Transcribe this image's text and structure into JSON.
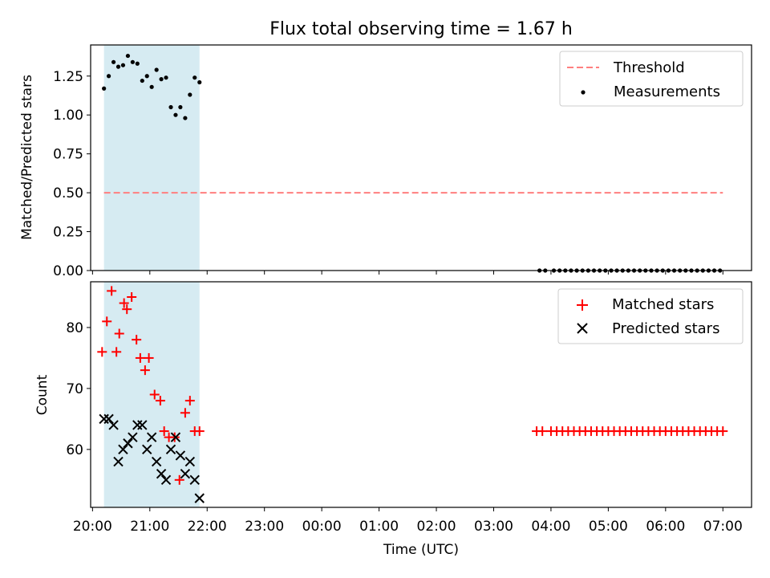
{
  "chart_data": [
    {
      "type": "scatter",
      "title": "Flux total observing time = 1.67 h",
      "xlabel": "",
      "ylabel": "Matched/Predicted stars",
      "x_unit": "hours (UTC, continuing past midnight: 24 = 00:00, 31 = 07:00)",
      "xlim": [
        19.967,
        31.5
      ],
      "ylim": [
        0.0,
        1.45
      ],
      "yticks": [
        "0.00",
        "0.25",
        "0.50",
        "0.75",
        "1.00",
        "1.25"
      ],
      "grid": false,
      "legend_position": "top-right",
      "shaded_span": [
        20.2,
        21.867
      ],
      "colors": {
        "span": "#add8e6",
        "threshold": "#ff7f7f",
        "measurements": "#000000"
      },
      "series": [
        {
          "name": "Threshold",
          "style": "dashed-line",
          "x": [
            20.2,
            31.0
          ],
          "y": [
            0.5,
            0.5
          ]
        },
        {
          "name": "Measurements",
          "style": "dot",
          "x": [
            20.2,
            20.283,
            20.367,
            20.45,
            20.533,
            20.617,
            20.7,
            20.783,
            20.867,
            20.95,
            21.033,
            21.117,
            21.2,
            21.283,
            21.367,
            21.45,
            21.533,
            21.617,
            21.7,
            21.783,
            21.867,
            27.8,
            27.9,
            28.05,
            28.15,
            28.25,
            28.35,
            28.45,
            28.55,
            28.65,
            28.75,
            28.85,
            28.95,
            29.05,
            29.15,
            29.25,
            29.35,
            29.45,
            29.55,
            29.65,
            29.75,
            29.85,
            29.95,
            30.05,
            30.15,
            30.25,
            30.35,
            30.45,
            30.55,
            30.65,
            30.75,
            30.85,
            30.95
          ],
          "y": [
            1.17,
            1.25,
            1.34,
            1.31,
            1.32,
            1.38,
            1.34,
            1.33,
            1.22,
            1.25,
            1.18,
            1.29,
            1.23,
            1.24,
            1.05,
            1.0,
            1.05,
            0.98,
            1.13,
            1.24,
            1.21,
            0,
            0,
            0,
            0,
            0,
            0,
            0,
            0,
            0,
            0,
            0,
            0,
            0,
            0,
            0,
            0,
            0,
            0,
            0,
            0,
            0,
            0,
            0,
            0,
            0,
            0,
            0,
            0,
            0,
            0,
            0,
            0
          ]
        }
      ]
    },
    {
      "type": "scatter",
      "title": "",
      "xlabel": "Time (UTC)",
      "ylabel": "Count",
      "xlim": [
        19.967,
        31.5
      ],
      "ylim": [
        50.5,
        87.5
      ],
      "yticks": [
        "60",
        "70",
        "80"
      ],
      "xticks": [
        "20:00",
        "21:00",
        "22:00",
        "23:00",
        "00:00",
        "01:00",
        "02:00",
        "03:00",
        "04:00",
        "05:00",
        "06:00",
        "07:00"
      ],
      "xtick_values": [
        20,
        21,
        22,
        23,
        24,
        25,
        26,
        27,
        28,
        29,
        30,
        31
      ],
      "grid": false,
      "legend_position": "top-right",
      "shaded_span": [
        20.2,
        21.867
      ],
      "colors": {
        "span": "#add8e6",
        "matched": "#ff0000",
        "predicted": "#000000"
      },
      "series": [
        {
          "name": "Matched stars",
          "marker": "+",
          "x": [
            20.167,
            20.25,
            20.333,
            20.417,
            20.467,
            20.55,
            20.6,
            20.683,
            20.767,
            20.833,
            20.917,
            20.983,
            21.083,
            21.183,
            21.25,
            21.333,
            21.433,
            21.517,
            21.617,
            21.7,
            21.783,
            21.867,
            27.75,
            27.85,
            28.0,
            28.1,
            28.2,
            28.3,
            28.4,
            28.5,
            28.6,
            28.7,
            28.8,
            28.9,
            29.0,
            29.1,
            29.2,
            29.3,
            29.4,
            29.5,
            29.6,
            29.7,
            29.8,
            29.9,
            30.0,
            30.1,
            30.2,
            30.3,
            30.4,
            30.5,
            30.6,
            30.7,
            30.8,
            30.9,
            31.0
          ],
          "y": [
            76,
            81,
            86,
            76,
            79,
            84,
            83,
            85,
            78,
            75,
            73,
            75,
            69,
            68,
            63,
            62,
            62,
            55,
            66,
            68,
            63,
            63,
            63,
            63,
            63,
            63,
            63,
            63,
            63,
            63,
            63,
            63,
            63,
            63,
            63,
            63,
            63,
            63,
            63,
            63,
            63,
            63,
            63,
            63,
            63,
            63,
            63,
            63,
            63,
            63,
            63,
            63,
            63,
            63,
            63
          ]
        },
        {
          "name": "Predicted stars",
          "marker": "x",
          "x": [
            20.2,
            20.283,
            20.367,
            20.45,
            20.533,
            20.617,
            20.7,
            20.783,
            20.867,
            20.95,
            21.033,
            21.117,
            21.2,
            21.283,
            21.367,
            21.45,
            21.533,
            21.617,
            21.7,
            21.783,
            21.867
          ],
          "y": [
            65,
            65,
            64,
            58,
            60,
            61,
            62,
            64,
            64,
            60,
            62,
            58,
            56,
            55,
            60,
            62,
            59,
            56,
            58,
            55,
            52
          ]
        }
      ]
    }
  ]
}
